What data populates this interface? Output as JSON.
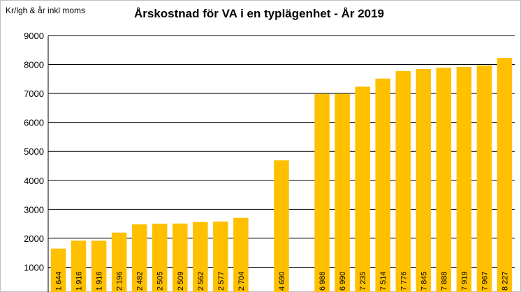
{
  "chart_data": {
    "type": "bar",
    "title": "Årskostnad för VA i en typlägenhet - År 2019",
    "ylabel": "Kr/lgh & år inkl moms",
    "xlabel": "",
    "ylim": [
      0,
      9000
    ],
    "yticks": [
      1000,
      2000,
      3000,
      4000,
      5000,
      6000,
      7000,
      8000,
      9000
    ],
    "grid": true,
    "legend": "none",
    "bar_color": "#FFC000",
    "values": [
      1644,
      1916,
      1916,
      2196,
      2482,
      2505,
      2509,
      2562,
      2577,
      2704,
      null,
      4690,
      null,
      6986,
      6990,
      7235,
      7514,
      7776,
      7845,
      7888,
      7919,
      7967,
      8227
    ],
    "labels": [
      "1 644",
      "1 916",
      "1 916",
      "2 196",
      "2 482",
      "2 505",
      "2 509",
      "2 562",
      "2 577",
      "2 704",
      "",
      "4 690",
      "",
      "6 986",
      "6 990",
      "7 235",
      "7 514",
      "7 776",
      "7 845",
      "7 888",
      "7 919",
      "7 967",
      "8 227"
    ]
  }
}
